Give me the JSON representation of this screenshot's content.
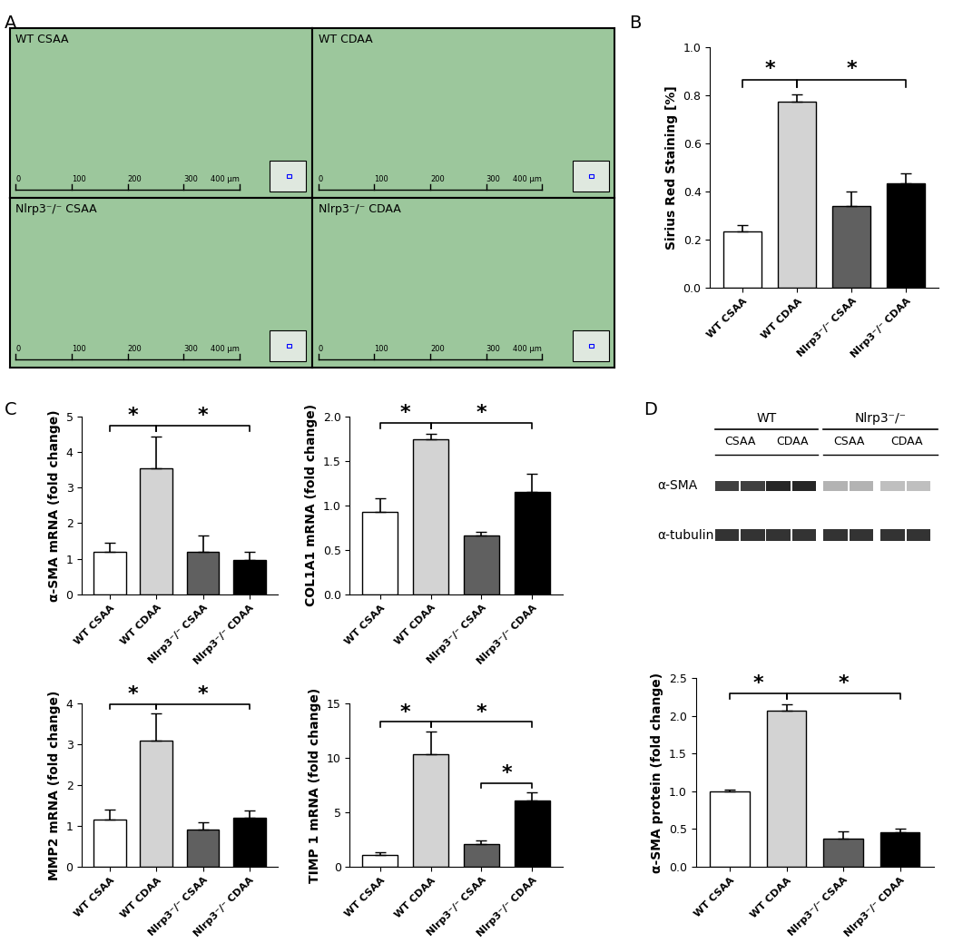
{
  "panel_labels": [
    "A",
    "B",
    "C",
    "D"
  ],
  "histology": {
    "panels": [
      "WT CSAA",
      "WT CDAA",
      "Nlrp3⁻/⁻ CSAA",
      "Nlrp3⁻/⁻ CDAA"
    ],
    "scale_ticks": [
      "0",
      "100",
      "200",
      "300",
      "400 µm"
    ]
  },
  "blot": {
    "groups": [
      "WT",
      "Nlrp3⁻/⁻"
    ],
    "lanes": [
      "CSAA",
      "CDAA",
      "CSAA",
      "CDAA"
    ],
    "rows": [
      "α-SMA",
      "α-tubulin"
    ]
  },
  "chart_data": [
    {
      "type": "bar",
      "panel": "B",
      "y_label": "Sirius Red Staining [%]",
      "categories": [
        "WT CSAA",
        "WT CDAA",
        "Nlrp3⁻/⁻ CSAA",
        "Nlrp3⁻/⁻ CDAA"
      ],
      "values": [
        0.235,
        0.775,
        0.34,
        0.435
      ],
      "errors": [
        0.025,
        0.03,
        0.06,
        0.04
      ],
      "colors": [
        "#ffffff",
        "#d3d3d3",
        "#606060",
        "#000000"
      ],
      "ylim": [
        0,
        1.0
      ],
      "yticks": [
        {
          "value": 0,
          "label": "0.0"
        },
        {
          "value": 0.2,
          "label": "0.2"
        },
        {
          "value": 0.4,
          "label": "0.4"
        },
        {
          "value": 0.6,
          "label": "0.6"
        },
        {
          "value": 0.8,
          "label": "0.8"
        },
        {
          "value": 1.0,
          "label": "1.0"
        }
      ],
      "significance": [
        {
          "pair": [
            0,
            1
          ],
          "label": "*"
        },
        {
          "pair": [
            1,
            3
          ],
          "label": "*"
        }
      ]
    },
    {
      "type": "bar",
      "panel": "C",
      "y_label": "α-SMA mRNA (fold change)",
      "categories": [
        "WT CSAA",
        "WT CDAA",
        "Nlrp3⁻/⁻ CSAA",
        "Nlrp3⁻/⁻ CDAA"
      ],
      "values": [
        1.2,
        3.55,
        1.2,
        0.95
      ],
      "errors": [
        0.25,
        0.9,
        0.45,
        0.25
      ],
      "colors": [
        "#ffffff",
        "#d3d3d3",
        "#606060",
        "#000000"
      ],
      "ylim": [
        0,
        5
      ],
      "yticks": [
        0,
        1,
        2,
        3,
        4,
        5
      ],
      "significance": [
        {
          "pair": [
            0,
            1
          ],
          "label": "*"
        },
        {
          "pair": [
            1,
            3
          ],
          "label": "*"
        }
      ]
    },
    {
      "type": "bar",
      "panel": "C",
      "y_label": "COL1A1 mRNA (fold change)",
      "categories": [
        "WT CSAA",
        "WT CDAA",
        "Nlrp3⁻/⁻ CSAA",
        "Nlrp3⁻/⁻ CDAA"
      ],
      "values": [
        0.93,
        1.75,
        0.66,
        1.15
      ],
      "errors": [
        0.15,
        0.06,
        0.04,
        0.21
      ],
      "colors": [
        "#ffffff",
        "#d3d3d3",
        "#606060",
        "#000000"
      ],
      "ylim": [
        0,
        2.0
      ],
      "yticks": [
        {
          "value": 0,
          "label": "0.0"
        },
        {
          "value": 0.5,
          "label": "0.5"
        },
        {
          "value": 1.0,
          "label": "1.0"
        },
        {
          "value": 1.5,
          "label": "1.5"
        },
        {
          "value": 2.0,
          "label": "2.0"
        }
      ],
      "significance": [
        {
          "pair": [
            0,
            1
          ],
          "label": "*"
        },
        {
          "pair": [
            1,
            3
          ],
          "label": "*"
        }
      ]
    },
    {
      "type": "bar",
      "panel": "C",
      "y_label": "MMP2 mRNA (fold change)",
      "categories": [
        "WT CSAA",
        "WT CDAA",
        "Nlrp3⁻/⁻ CSAA",
        "Nlrp3⁻/⁻ CDAA"
      ],
      "values": [
        1.15,
        3.1,
        0.9,
        1.2
      ],
      "errors": [
        0.25,
        0.65,
        0.18,
        0.18
      ],
      "colors": [
        "#ffffff",
        "#d3d3d3",
        "#606060",
        "#000000"
      ],
      "ylim": [
        0,
        4
      ],
      "yticks": [
        0,
        1,
        2,
        3,
        4
      ],
      "significance": [
        {
          "pair": [
            0,
            1
          ],
          "label": "*"
        },
        {
          "pair": [
            1,
            3
          ],
          "label": "*"
        }
      ]
    },
    {
      "type": "bar",
      "panel": "C",
      "y_label": "TIMP 1 mRNA (fold change)",
      "categories": [
        "WT CSAA",
        "WT CDAA",
        "Nlrp3⁻/⁻ CSAA",
        "Nlrp3⁻/⁻ CDAA"
      ],
      "values": [
        1.1,
        10.3,
        2.1,
        6.1
      ],
      "errors": [
        0.2,
        2.1,
        0.3,
        0.7
      ],
      "colors": [
        "#ffffff",
        "#d3d3d3",
        "#606060",
        "#000000"
      ],
      "ylim": [
        0,
        15
      ],
      "yticks": [
        0,
        5,
        10,
        15
      ],
      "significance": [
        {
          "pair": [
            0,
            1
          ],
          "label": "*"
        },
        {
          "pair": [
            1,
            3
          ],
          "label": "*"
        },
        {
          "pair": [
            2,
            3
          ],
          "label": "*"
        }
      ]
    },
    {
      "type": "bar",
      "panel": "D",
      "y_label": "α-SMA protein (fold change)",
      "categories": [
        "WT CSAA",
        "WT CDAA",
        "Nlrp3⁻/⁻ CSAA",
        "Nlrp3⁻/⁻ CDAA"
      ],
      "values": [
        1.0,
        2.07,
        0.37,
        0.45
      ],
      "errors": [
        0.02,
        0.08,
        0.1,
        0.05
      ],
      "colors": [
        "#ffffff",
        "#d3d3d3",
        "#606060",
        "#000000"
      ],
      "ylim": [
        0,
        2.5
      ],
      "yticks": [
        {
          "value": 0,
          "label": "0.0"
        },
        {
          "value": 0.5,
          "label": "0.5"
        },
        {
          "value": 1.0,
          "label": "1.0"
        },
        {
          "value": 1.5,
          "label": "1.5"
        },
        {
          "value": 2.0,
          "label": "2.0"
        },
        {
          "value": 2.5,
          "label": "2.5"
        }
      ],
      "significance": [
        {
          "pair": [
            0,
            1
          ],
          "label": "*"
        },
        {
          "pair": [
            1,
            3
          ],
          "label": "*"
        }
      ]
    }
  ]
}
